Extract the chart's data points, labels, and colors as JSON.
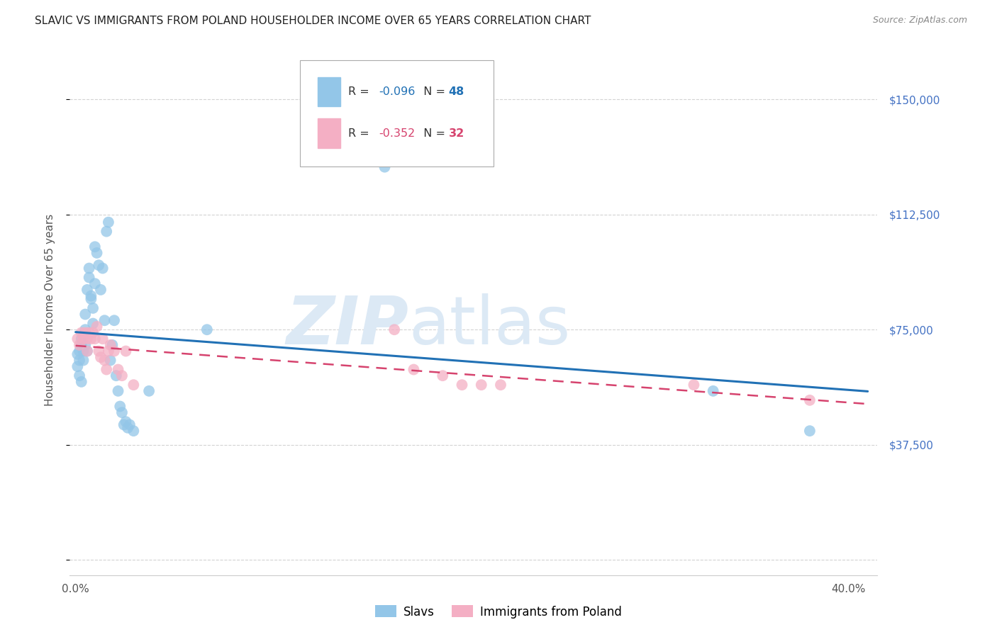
{
  "title": "SLAVIC VS IMMIGRANTS FROM POLAND HOUSEHOLDER INCOME OVER 65 YEARS CORRELATION CHART",
  "source": "Source: ZipAtlas.com",
  "ylabel": "Householder Income Over 65 years",
  "ytick_positions": [
    0,
    37500,
    75000,
    112500,
    150000
  ],
  "ytick_labels": [
    "",
    "$37,500",
    "$75,000",
    "$112,500",
    "$150,000"
  ],
  "xlim": [
    -0.003,
    0.415
  ],
  "ylim": [
    -5000,
    168000
  ],
  "watermark_zip": "ZIP",
  "watermark_atlas": "atlas",
  "legend_blue_r": "-0.096",
  "legend_blue_n": "48",
  "legend_pink_r": "-0.352",
  "legend_pink_n": "32",
  "slavs_x": [
    0.001,
    0.001,
    0.002,
    0.002,
    0.002,
    0.003,
    0.003,
    0.003,
    0.004,
    0.004,
    0.004,
    0.005,
    0.005,
    0.005,
    0.006,
    0.006,
    0.007,
    0.007,
    0.008,
    0.008,
    0.009,
    0.009,
    0.01,
    0.01,
    0.011,
    0.012,
    0.013,
    0.014,
    0.015,
    0.016,
    0.017,
    0.018,
    0.019,
    0.02,
    0.021,
    0.022,
    0.023,
    0.024,
    0.025,
    0.026,
    0.027,
    0.028,
    0.03,
    0.068,
    0.16,
    0.33,
    0.38,
    0.038
  ],
  "slavs_y": [
    67000,
    63000,
    68000,
    65000,
    60000,
    70000,
    72000,
    58000,
    73000,
    68000,
    65000,
    80000,
    70000,
    75000,
    68000,
    88000,
    92000,
    95000,
    86000,
    85000,
    82000,
    77000,
    102000,
    90000,
    100000,
    96000,
    88000,
    95000,
    78000,
    107000,
    110000,
    65000,
    70000,
    78000,
    60000,
    55000,
    50000,
    48000,
    44000,
    45000,
    43000,
    44000,
    42000,
    75000,
    128000,
    55000,
    42000,
    55000
  ],
  "poland_x": [
    0.001,
    0.002,
    0.003,
    0.004,
    0.005,
    0.006,
    0.006,
    0.007,
    0.008,
    0.009,
    0.01,
    0.011,
    0.012,
    0.013,
    0.014,
    0.015,
    0.016,
    0.017,
    0.018,
    0.02,
    0.022,
    0.024,
    0.026,
    0.03,
    0.165,
    0.175,
    0.19,
    0.2,
    0.21,
    0.22,
    0.32,
    0.38
  ],
  "poland_y": [
    72000,
    70000,
    74000,
    72000,
    74000,
    72000,
    68000,
    74000,
    72000,
    74000,
    72000,
    76000,
    68000,
    66000,
    72000,
    65000,
    62000,
    68000,
    70000,
    68000,
    62000,
    60000,
    68000,
    57000,
    75000,
    62000,
    60000,
    57000,
    57000,
    57000,
    57000,
    52000
  ],
  "blue_scatter_color": "#93c6e8",
  "pink_scatter_color": "#f4afc4",
  "line_blue_color": "#2171b5",
  "line_pink_color": "#d6436e",
  "bg_color": "#ffffff",
  "grid_color": "#d3d3d3",
  "title_color": "#222222",
  "ylabel_color": "#555555",
  "right_tick_color": "#4472c4",
  "source_color": "#888888",
  "watermark_color": "#dce9f5"
}
